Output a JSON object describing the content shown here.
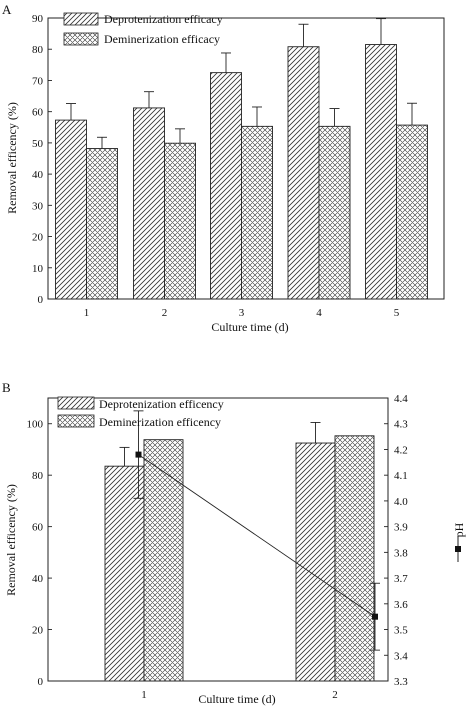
{
  "chart_data": [
    {
      "panel_label": "A",
      "type": "bar",
      "categories": [
        "1",
        "2",
        "3",
        "4",
        "5"
      ],
      "xlabel": "Culture time (d)",
      "ylabel": "Removal efficency (%)",
      "ylim": [
        0,
        90
      ],
      "yticks": [
        0,
        10,
        20,
        30,
        40,
        50,
        60,
        70,
        80,
        90
      ],
      "legend_position": "top-left",
      "series": [
        {
          "name": "Deprotenization efficacy",
          "pattern": "diagonal-hatch",
          "values": [
            57.3,
            61.2,
            72.5,
            80.8,
            81.5
          ],
          "error": [
            5.3,
            5.2,
            6.3,
            7.2,
            8.3
          ]
        },
        {
          "name": "Deminerization efficacy",
          "pattern": "cross-hatch",
          "values": [
            48.2,
            49.9,
            55.3,
            55.3,
            55.7
          ],
          "error": [
            3.6,
            4.6,
            6.2,
            5.7,
            7.0
          ]
        }
      ]
    },
    {
      "panel_label": "B",
      "type": "bar",
      "categories": [
        "1",
        "2"
      ],
      "xlabel": "Culture time (d)",
      "ylabel": "Removal efficency (%)",
      "ylim": [
        0,
        110
      ],
      "yticks": [
        0,
        20,
        40,
        60,
        80,
        100
      ],
      "y2label": "pH",
      "y2lim": [
        3.3,
        4.4
      ],
      "y2ticks": [
        3.3,
        3.4,
        3.5,
        3.6,
        3.7,
        3.8,
        3.9,
        4.0,
        4.1,
        4.2,
        4.3,
        4.4
      ],
      "legend_position": "top-left",
      "series": [
        {
          "name": "Deprotenization efficency",
          "pattern": "diagonal-hatch",
          "values": [
            83.5,
            92.5
          ],
          "error": [
            7.3,
            8.0
          ]
        },
        {
          "name": "Deminerization efficency",
          "pattern": "cross-hatch",
          "values": [
            93.8,
            95.3
          ],
          "error": [
            0,
            0
          ]
        }
      ],
      "line_series": {
        "name": "pH",
        "axis": "right",
        "x": [
          1,
          2
        ],
        "values": [
          4.18,
          3.55
        ],
        "error": [
          0.17,
          0.13
        ]
      }
    }
  ]
}
